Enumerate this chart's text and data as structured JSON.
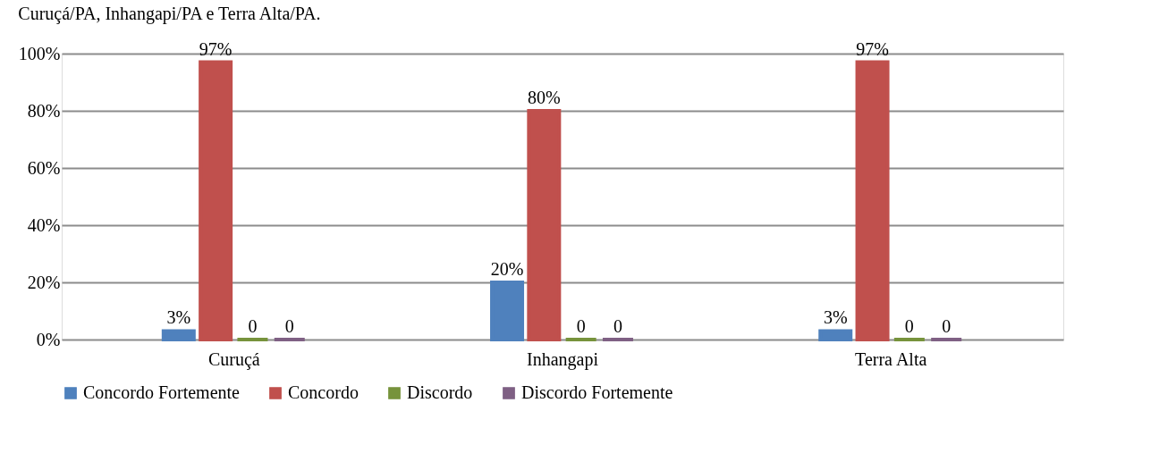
{
  "chart_data": {
    "type": "bar",
    "categories": [
      "Curuçá",
      "Inhangapi",
      "Terra Alta"
    ],
    "series": [
      {
        "name": "Concordo Fortemente",
        "color": "#4f81bd",
        "values": [
          3,
          20,
          3
        ],
        "value_labels": [
          "3%",
          "20%",
          "3%"
        ]
      },
      {
        "name": "Concordo",
        "color": "#c0504d",
        "values": [
          97,
          80,
          97
        ],
        "value_labels": [
          "97%",
          "80%",
          "97%"
        ]
      },
      {
        "name": "Discordo",
        "color": "#77933c",
        "values": [
          0,
          0,
          0
        ],
        "value_labels": [
          "0",
          "0",
          "0"
        ]
      },
      {
        "name": "Discordo Fortemente",
        "color": "#7f6084",
        "values": [
          0,
          0,
          0
        ],
        "value_labels": [
          "0",
          "0",
          "0"
        ]
      }
    ],
    "ylim": [
      0,
      100
    ],
    "yticks": [
      {
        "value": 0,
        "label": "0%"
      },
      {
        "value": 20,
        "label": "20%"
      },
      {
        "value": 40,
        "label": "40%"
      },
      {
        "value": 60,
        "label": "60%"
      },
      {
        "value": 80,
        "label": "80%"
      },
      {
        "value": 100,
        "label": "100%"
      }
    ],
    "grid": "y",
    "legend": "bottom",
    "annotations": [
      "Curuçá/PA, Inhangapi/PA e Terra Alta/PA."
    ]
  }
}
